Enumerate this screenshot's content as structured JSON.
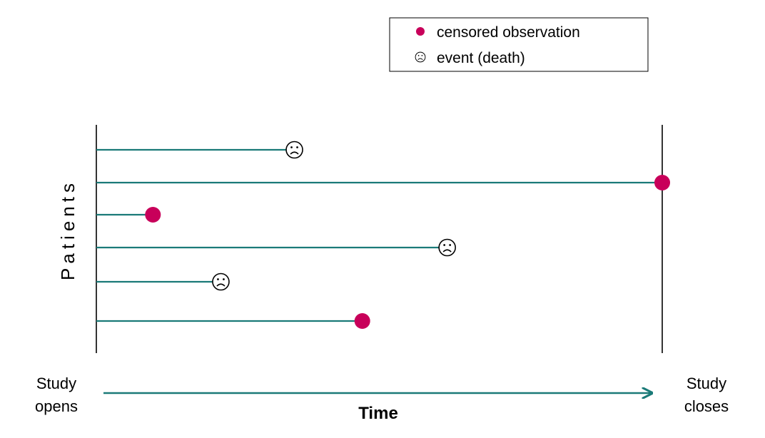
{
  "legend": {
    "items": [
      {
        "marker": "censored-dot",
        "label": "censored observation"
      },
      {
        "marker": "sad-face",
        "label": "event (death)"
      }
    ]
  },
  "ylabel": "Patients",
  "time_label": "Time",
  "study_opens": [
    "Study",
    "opens"
  ],
  "study_closes": [
    "Study",
    "closes"
  ],
  "colors": {
    "timeline": "#1a7a78",
    "censored": "#c8005a",
    "axis": "#000000"
  },
  "patients": [
    {
      "end": 0.35,
      "outcome": "event"
    },
    {
      "end": 1.0,
      "outcome": "censored"
    },
    {
      "end": 0.1,
      "outcome": "censored"
    },
    {
      "end": 0.62,
      "outcome": "event"
    },
    {
      "end": 0.22,
      "outcome": "event"
    },
    {
      "end": 0.47,
      "outcome": "censored"
    }
  ]
}
